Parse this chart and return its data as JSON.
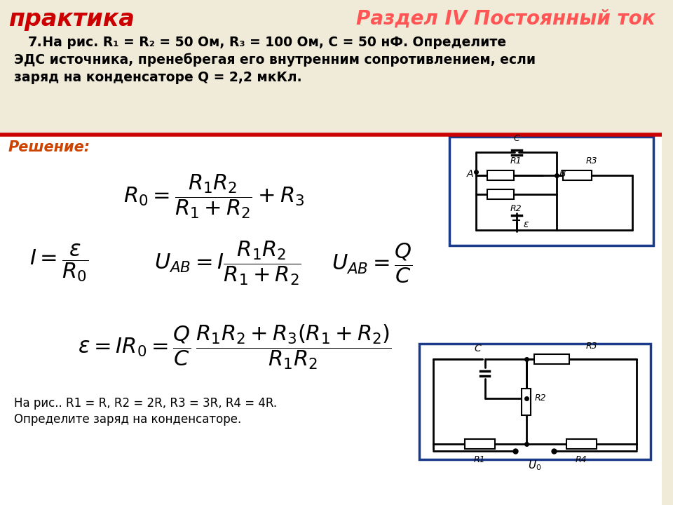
{
  "bg_color": "#f0ead8",
  "header_left_text": "практика",
  "header_left_color": "#cc0000",
  "header_right_text": "Раздел IV Постоянный ток",
  "header_right_color": "#ff5555",
  "problem_number": "7.",
  "problem_text_line1": " На рис. R₁ = R₂ = 50 Ом, R₃ = 100 Ом, C = 50 нФ. Определите",
  "problem_text_line2": "ЭДС источника, пренебрегая его внутренним сопротивлением, если",
  "problem_text_line3": "заряд на конденсаторе Q = 2,2 мкКл.",
  "solution_label": "Решение:",
  "solution_label_color": "#cc4400",
  "divider_color": "#cc0000",
  "bottom_text_line1": "На рис.. R1 = R, R2 = 2R, R3 = 3R, R4 = 4R.",
  "bottom_text_line2": "Определите заряд на конденсаторе.",
  "white_content_bg": "#ffffff",
  "circuit_border_color": "#1a3a8a"
}
